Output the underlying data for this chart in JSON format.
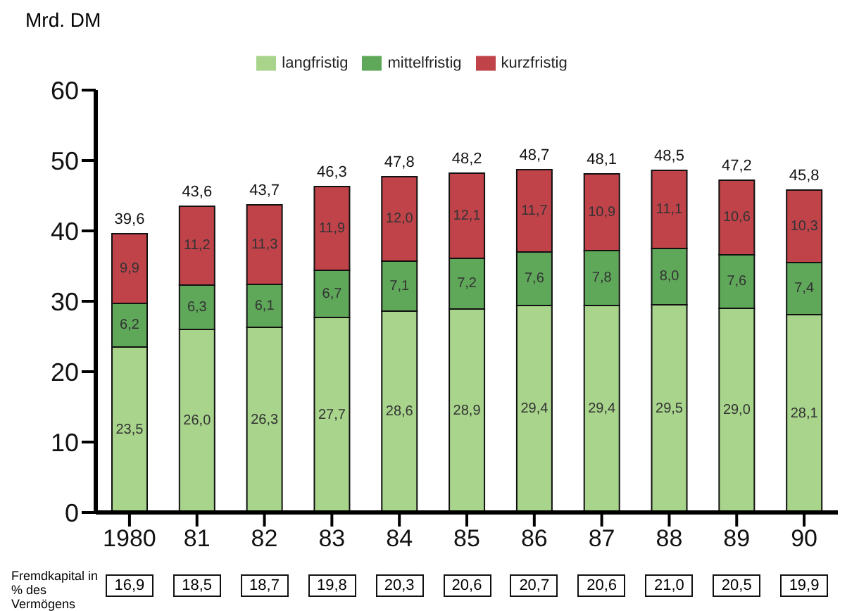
{
  "chart_data": {
    "type": "bar",
    "stacked": true,
    "ylabel": "Mrd. DM",
    "categories": [
      "1980",
      "81",
      "82",
      "83",
      "84",
      "85",
      "86",
      "87",
      "88",
      "89",
      "90"
    ],
    "series": [
      {
        "name": "langfristig",
        "color": "#a8d48c",
        "values": [
          23.5,
          26.0,
          26.3,
          27.7,
          28.6,
          28.9,
          29.4,
          29.4,
          29.5,
          29.0,
          28.1
        ],
        "value_labels": [
          "23,5",
          "26,0",
          "26,3",
          "27,7",
          "28,6",
          "28,9",
          "29,4",
          "29,4",
          "29,5",
          "29,0",
          "28,1"
        ]
      },
      {
        "name": "mittelfristig",
        "color": "#5fa85a",
        "values": [
          6.2,
          6.3,
          6.1,
          6.7,
          7.1,
          7.2,
          7.6,
          7.8,
          8.0,
          7.6,
          7.4
        ],
        "value_labels": [
          "6,2",
          "6,3",
          "6,1",
          "6,7",
          "7,1",
          "7,2",
          "7,6",
          "7,8",
          "8,0",
          "7,6",
          "7,4"
        ]
      },
      {
        "name": "kurzfristig",
        "color": "#c0434a",
        "values": [
          9.9,
          11.2,
          11.3,
          11.9,
          12.0,
          12.1,
          11.7,
          10.9,
          11.1,
          10.6,
          10.3
        ],
        "value_labels": [
          "9,9",
          "11,2",
          "11,3",
          "11,9",
          "12,0",
          "12,1",
          "11,7",
          "10,9",
          "11,1",
          "10,6",
          "10,3"
        ]
      }
    ],
    "totals": [
      "39,6",
      "43,6",
      "43,7",
      "46,3",
      "47,8",
      "48,2",
      "48,7",
      "48,1",
      "48,5",
      "47,2",
      "45,8"
    ],
    "ylim": [
      0,
      60
    ],
    "yticks": [
      0,
      10,
      20,
      30,
      40,
      50,
      60
    ],
    "grid": false,
    "legend": "top",
    "annotations": [
      "Fremdkapital in % des Vermögens",
      "16,9",
      "18,5",
      "18,7",
      "19,8",
      "20,3",
      "20,6",
      "20,7",
      "20,6",
      "21,0",
      "20,5",
      "19,9"
    ]
  }
}
